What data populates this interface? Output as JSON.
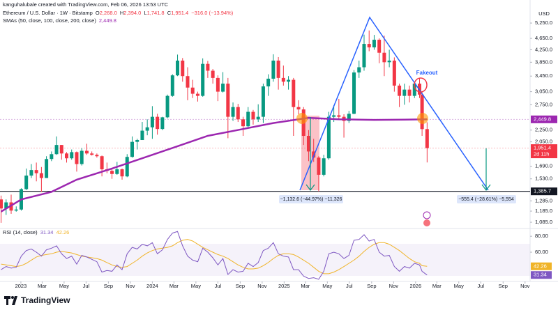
{
  "chart_data": {
    "type": "candlestick",
    "attribution": "kanguhalubale created with TradingView.com, Feb 06, 2026 13:53 UTC",
    "symbol": "Ethereum / U.S. Dollar · 1W · Bitstamp",
    "ohlc_legend": [
      {
        "key": "O",
        "value": "2,268.0"
      },
      {
        "key": "H",
        "value": "2,394.0"
      },
      {
        "key": "L",
        "value": "1,741.8"
      },
      {
        "key": "C",
        "value": "1,951.4"
      }
    ],
    "change": "−316.0 (−13.94%)",
    "currency": "USD",
    "up_color": "#089981",
    "down_color": "#f23645",
    "log_scale": true,
    "xlim": [
      "2022-11-04",
      "2026-11-15"
    ],
    "ylim": [
      1050,
      5800
    ],
    "xticks": [
      {
        "value": "2023-01-01",
        "label": "2023"
      },
      {
        "value": "2023-03-01",
        "label": "Mar"
      },
      {
        "value": "2023-05-01",
        "label": "May"
      },
      {
        "value": "2023-07-01",
        "label": "Jul"
      },
      {
        "value": "2023-09-01",
        "label": "Sep"
      },
      {
        "value": "2023-11-01",
        "label": "Nov"
      },
      {
        "value": "2024-01-01",
        "label": "2024"
      },
      {
        "value": "2024-03-01",
        "label": "Mar"
      },
      {
        "value": "2024-05-01",
        "label": "May"
      },
      {
        "value": "2024-07-01",
        "label": "Jul"
      },
      {
        "value": "2024-09-01",
        "label": "Sep"
      },
      {
        "value": "2024-11-01",
        "label": "Nov"
      },
      {
        "value": "2025-01-01",
        "label": "2025"
      },
      {
        "value": "2025-03-01",
        "label": "Mar"
      },
      {
        "value": "2025-05-01",
        "label": "May"
      },
      {
        "value": "2025-07-01",
        "label": "Jul"
      },
      {
        "value": "2025-09-01",
        "label": "Sep"
      },
      {
        "value": "2025-11-01",
        "label": "Nov"
      },
      {
        "value": "2026-01-01",
        "label": "2026"
      },
      {
        "value": "2026-03-01",
        "label": "Mar"
      },
      {
        "value": "2026-05-01",
        "label": "May"
      },
      {
        "value": "2026-07-01",
        "label": "Jul"
      },
      {
        "value": "2026-09-01",
        "label": "Sep"
      },
      {
        "value": "2026-11-01",
        "label": "Nov"
      }
    ],
    "yticks": [
      {
        "value": 5250,
        "label": "5,250.0"
      },
      {
        "value": 4650,
        "label": "4,650.0"
      },
      {
        "value": 4250,
        "label": "4,250.0"
      },
      {
        "value": 3850,
        "label": "3,850.0"
      },
      {
        "value": 3450,
        "label": "3,450.0"
      },
      {
        "value": 3050,
        "label": "3,050.0"
      },
      {
        "value": 2750,
        "label": "2,750.0"
      },
      {
        "value": 2250,
        "label": "2,250.0"
      },
      {
        "value": 2050,
        "label": "2,050.0"
      },
      {
        "value": 1690,
        "label": "1,690.0"
      },
      {
        "value": 1530,
        "label": "1,530.0"
      },
      {
        "value": 1285,
        "label": "1,285.0"
      },
      {
        "value": 1185,
        "label": "1,185.0"
      },
      {
        "value": 1085,
        "label": "1,085.0"
      }
    ],
    "price_markers": [
      {
        "value": 2449.8,
        "label": "2,449.8",
        "color": "#9c27b0"
      },
      {
        "value": 1951.4,
        "label": "1,951.4",
        "sublabel": "2d 11h",
        "color": "#f23645"
      },
      {
        "value": 1385.7,
        "label": "1,385.7",
        "color": "#131722"
      }
    ],
    "x": [
      "2022-11-07",
      "2022-11-21",
      "2022-12-05",
      "2022-12-19",
      "2023-01-02",
      "2023-01-16",
      "2023-01-30",
      "2023-02-13",
      "2023-02-27",
      "2023-03-13",
      "2023-03-27",
      "2023-04-10",
      "2023-04-24",
      "2023-05-08",
      "2023-05-22",
      "2023-06-05",
      "2023-06-19",
      "2023-07-03",
      "2023-07-17",
      "2023-07-31",
      "2023-08-14",
      "2023-08-28",
      "2023-09-11",
      "2023-09-25",
      "2023-10-09",
      "2023-10-23",
      "2023-11-06",
      "2023-11-20",
      "2023-12-04",
      "2023-12-18",
      "2024-01-01",
      "2024-01-15",
      "2024-01-29",
      "2024-02-12",
      "2024-02-26",
      "2024-03-11",
      "2024-03-25",
      "2024-04-08",
      "2024-04-22",
      "2024-05-06",
      "2024-05-20",
      "2024-06-03",
      "2024-06-17",
      "2024-07-01",
      "2024-07-15",
      "2024-07-29",
      "2024-08-12",
      "2024-08-26",
      "2024-09-09",
      "2024-09-23",
      "2024-10-07",
      "2024-10-21",
      "2024-11-04",
      "2024-11-18",
      "2024-12-02",
      "2024-12-16",
      "2024-12-30",
      "2025-01-13",
      "2025-01-27",
      "2025-02-10",
      "2025-02-24",
      "2025-03-10",
      "2025-03-24",
      "2025-04-07",
      "2025-04-21",
      "2025-05-05",
      "2025-05-19",
      "2025-06-02",
      "2025-06-16",
      "2025-06-30",
      "2025-07-14",
      "2025-07-28",
      "2025-08-11",
      "2025-08-25",
      "2025-09-08",
      "2025-09-22",
      "2025-10-06",
      "2025-10-20",
      "2025-11-03",
      "2025-11-17",
      "2025-12-01",
      "2025-12-15",
      "2025-12-29",
      "2026-01-12",
      "2026-01-19",
      "2026-02-02"
    ],
    "open": [
      1300,
      1210,
      1270,
      1190,
      1200,
      1410,
      1570,
      1640,
      1600,
      1540,
      1790,
      1860,
      2000,
      1870,
      1800,
      1890,
      1720,
      1910,
      1870,
      1850,
      1830,
      1650,
      1630,
      1590,
      1650,
      1560,
      1820,
      2050,
      2080,
      2240,
      2300,
      2500,
      2270,
      2490,
      2950,
      3470,
      3900,
      3450,
      3150,
      3000,
      2950,
      3800,
      3600,
      3400,
      3050,
      3250,
      2500,
      2700,
      2450,
      2320,
      2600,
      2450,
      2500,
      3180,
      3380,
      3900,
      3400,
      3300,
      3350,
      2700,
      2650,
      2150,
      1900,
      1810,
      1580,
      1800,
      2500,
      2530,
      2500,
      2420,
      2560,
      3550,
      3700,
      4450,
      4330,
      4600,
      4150,
      3850,
      3900,
      3200,
      2950,
      3100,
      2950,
      3250,
      2980,
      2268
    ],
    "high": [
      1340,
      1300,
      1350,
      1230,
      1420,
      1660,
      1720,
      1740,
      1680,
      1830,
      1900,
      2140,
      2000,
      1890,
      1930,
      1900,
      1950,
      2020,
      1900,
      1870,
      1840,
      1740,
      1660,
      1750,
      1660,
      1860,
      2140,
      2100,
      2400,
      2450,
      2720,
      2560,
      2500,
      2980,
      3500,
      4090,
      3980,
      3700,
      3350,
      3050,
      3970,
      3890,
      3650,
      3470,
      3560,
      3400,
      2800,
      2770,
      2500,
      2700,
      2640,
      2760,
      3250,
      3500,
      4100,
      4010,
      3750,
      3450,
      3400,
      2850,
      2700,
      2250,
      2100,
      1830,
      1850,
      2600,
      2740,
      2880,
      2550,
      2620,
      3620,
      3900,
      4790,
      4950,
      4780,
      4650,
      4750,
      4250,
      4000,
      3250,
      3250,
      3200,
      3300,
      3400,
      3050,
      2394
    ],
    "low": [
      1080,
      1150,
      1160,
      1180,
      1190,
      1400,
      1540,
      1500,
      1380,
      1540,
      1760,
      1850,
      1780,
      1740,
      1780,
      1620,
      1700,
      1850,
      1840,
      1810,
      1560,
      1600,
      1530,
      1580,
      1520,
      1550,
      1810,
      1930,
      2080,
      2160,
      2100,
      2170,
      2250,
      2470,
      2930,
      3450,
      3300,
      2850,
      2900,
      2820,
      2930,
      3400,
      3250,
      2830,
      3030,
      2110,
      2420,
      2400,
      2150,
      2300,
      2350,
      2400,
      2380,
      2950,
      3300,
      3100,
      3200,
      3100,
      2150,
      2550,
      2000,
      1760,
      1750,
      1385.7,
      1560,
      1780,
      2400,
      2450,
      2120,
      2380,
      2550,
      3400,
      3600,
      4200,
      4250,
      3820,
      3450,
      3700,
      3050,
      2700,
      2750,
      2800,
      2900,
      2900,
      2150,
      1741.8
    ],
    "close": [
      1210,
      1270,
      1190,
      1200,
      1410,
      1570,
      1640,
      1600,
      1540,
      1790,
      1860,
      2000,
      1870,
      1800,
      1890,
      1720,
      1910,
      1870,
      1850,
      1830,
      1650,
      1630,
      1590,
      1650,
      1560,
      1820,
      2050,
      2080,
      2240,
      2300,
      2500,
      2270,
      2490,
      2950,
      3470,
      3900,
      3450,
      3150,
      3000,
      2950,
      3800,
      3600,
      3400,
      3050,
      3250,
      2500,
      2700,
      2450,
      2320,
      2600,
      2450,
      2500,
      3180,
      3380,
      3900,
      3400,
      3300,
      3350,
      2700,
      2650,
      2150,
      1900,
      1810,
      1580,
      1800,
      2500,
      2530,
      2500,
      2420,
      2560,
      3550,
      3700,
      4450,
      4330,
      4600,
      4150,
      3850,
      3900,
      3200,
      2950,
      3100,
      2950,
      3250,
      2980,
      2268,
      1951.4
    ],
    "sma": {
      "name": "SMAs (50, close, 100, close, 200, close)",
      "color": "#9c27b0",
      "value_label": "2,449.8",
      "x": [
        "2022-11-07",
        "2023-01-02",
        "2023-03-27",
        "2023-06-05",
        "2023-09-11",
        "2023-12-04",
        "2024-03-11",
        "2024-06-03",
        "2024-09-09",
        "2024-12-02",
        "2025-03-10",
        "2025-06-02",
        "2025-09-08",
        "2025-12-01",
        "2026-02-02"
      ],
      "values": [
        1180,
        1300,
        1380,
        1520,
        1660,
        1800,
        1980,
        2150,
        2270,
        2380,
        2480,
        2450,
        2440,
        2445,
        2449.8
      ]
    },
    "annotations": {
      "drop1": "−1,132.6 (−44.97%) −11,326",
      "drop2": "−555.4 (−28.61%) −5,554",
      "fakeout": "Fakeout"
    },
    "rsi": {
      "name": "RSI (14, close)",
      "color": "#7e57c2",
      "ma_color": "#f0b429",
      "value_label": "31.34",
      "ma_value_label": "42.26",
      "ylim": [
        25,
        88
      ],
      "yticks": [
        {
          "value": 80,
          "label": "80.00"
        },
        {
          "value": 60,
          "label": "60.00"
        }
      ],
      "values": [
        38,
        42,
        40,
        41,
        55,
        62,
        64,
        60,
        55,
        63,
        65,
        68,
        58,
        52,
        55,
        45,
        56,
        54,
        51,
        48,
        35,
        37,
        36,
        44,
        38,
        58,
        66,
        64,
        70,
        68,
        72,
        58,
        63,
        76,
        84,
        86,
        68,
        55,
        50,
        48,
        65,
        60,
        53,
        44,
        52,
        32,
        38,
        35,
        36,
        46,
        42,
        47,
        62,
        65,
        72,
        58,
        55,
        54,
        38,
        38,
        30,
        27,
        28,
        26,
        36,
        58,
        60,
        58,
        52,
        56,
        75,
        76,
        82,
        74,
        76,
        60,
        55,
        56,
        42,
        36,
        42,
        40,
        46,
        44,
        36,
        31.34
      ],
      "ma": [
        45,
        44,
        43,
        42,
        43,
        46,
        50,
        54,
        56,
        57,
        58,
        60,
        61,
        60,
        59,
        57,
        55,
        54,
        53,
        52,
        50,
        47,
        44,
        42,
        41,
        42,
        46,
        50,
        55,
        59,
        62,
        64,
        65,
        66,
        68,
        72,
        75,
        76,
        74,
        70,
        66,
        63,
        60,
        57,
        55,
        52,
        48,
        44,
        41,
        39,
        39,
        40,
        43,
        47,
        52,
        56,
        58,
        58,
        57,
        54,
        50,
        46,
        41,
        36,
        33,
        33,
        35,
        38,
        42,
        46,
        50,
        55,
        61,
        66,
        70,
        72,
        72,
        70,
        66,
        62,
        57,
        52,
        48,
        46,
        43,
        42.26
      ]
    },
    "brand": "TradingView"
  }
}
